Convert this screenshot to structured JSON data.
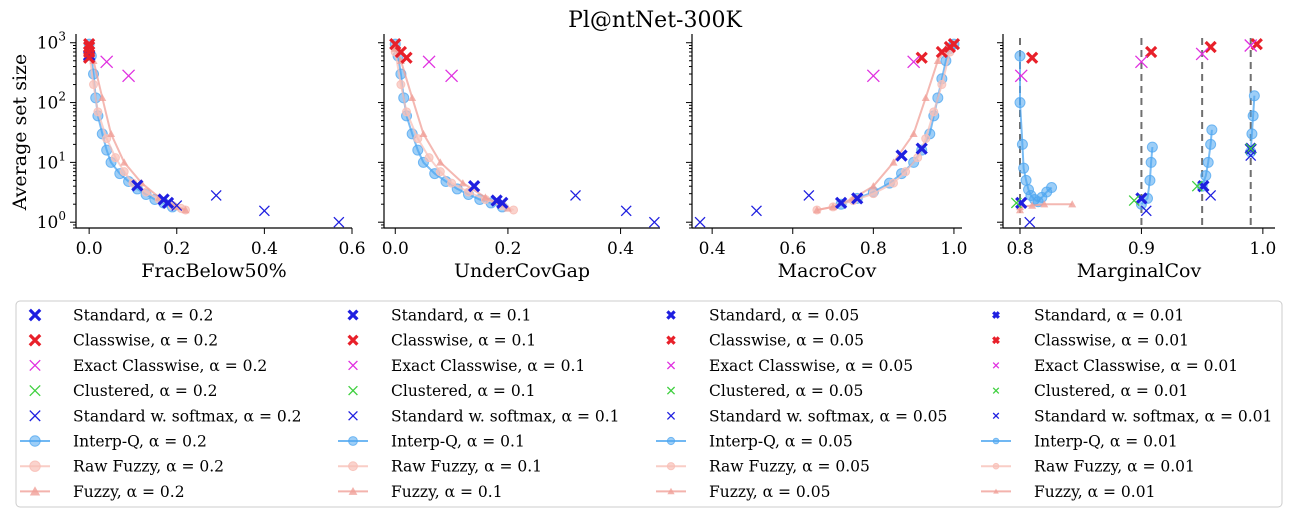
{
  "figure": {
    "title": "Pl@ntNet-300K",
    "ylabel": "Average set size"
  },
  "legend": {
    "columns": [
      [
        "Standard, α = 0.2",
        "Classwise, α = 0.2",
        "Exact Classwise, α = 0.2",
        "Clustered, α = 0.2",
        "Standard w. softmax, α = 0.2",
        "Interp-Q, α = 0.2",
        "Raw Fuzzy, α = 0.2",
        "Fuzzy, α = 0.2"
      ],
      [
        "Standard, α = 0.1",
        "Classwise, α = 0.1",
        "Exact Classwise, α = 0.1",
        "Clustered, α = 0.1",
        "Standard w. softmax, α = 0.1",
        "Interp-Q, α = 0.1",
        "Raw Fuzzy, α = 0.1",
        "Fuzzy, α = 0.1"
      ],
      [
        "Standard, α = 0.05",
        "Classwise, α = 0.05",
        "Exact Classwise, α = 0.05",
        "Clustered, α = 0.05",
        "Standard w. softmax, α = 0.05",
        "Interp-Q, α = 0.05",
        "Raw Fuzzy, α = 0.05",
        "Fuzzy, α = 0.05"
      ],
      [
        "Standard, α = 0.01",
        "Classwise, α = 0.01",
        "Exact Classwise, α = 0.01",
        "Clustered, α = 0.01",
        "Standard w. softmax, α = 0.01",
        "Interp-Q, α = 0.01",
        "Raw Fuzzy, α = 0.01",
        "Fuzzy, α = 0.01"
      ]
    ]
  },
  "colors": {
    "standard": "#1f1fe0",
    "classwise": "#e8202a",
    "exact_classwise": "#e030e0",
    "clustered": "#40d040",
    "softmax": "#1f1fe0",
    "interp": "#4da6f0",
    "raw_fuzzy": "#f8c0b8",
    "fuzzy": "#f0a098",
    "dashed": "#707070"
  },
  "chart_data": [
    {
      "type": "line",
      "xlabel": "FracBelow50%",
      "ylabel": "Average set size",
      "yscale": "log",
      "ylim": [
        0.8,
        1400
      ],
      "xlim": [
        -0.03,
        0.6
      ],
      "xticks": [
        "0.0",
        "0.2",
        "0.4",
        "0.6"
      ],
      "yticks": [
        "10^0",
        "10^1",
        "10^2",
        "10^3"
      ],
      "series": [
        {
          "name": "Interp-Q",
          "x": [
            0.0,
            0.005,
            0.01,
            0.015,
            0.02,
            0.03,
            0.04,
            0.05,
            0.07,
            0.09,
            0.11,
            0.13,
            0.15,
            0.17,
            0.19
          ],
          "y": [
            950,
            600,
            300,
            120,
            60,
            30,
            16,
            10,
            6.5,
            4.8,
            3.6,
            2.9,
            2.4,
            2.1,
            1.8
          ]
        },
        {
          "name": "Raw Fuzzy",
          "x": [
            0.0,
            0.01,
            0.02,
            0.04,
            0.06,
            0.08,
            0.1,
            0.13,
            0.16,
            0.19,
            0.21,
            0.22
          ],
          "y": [
            700,
            200,
            70,
            25,
            12,
            7,
            4.5,
            3.2,
            2.4,
            1.9,
            1.7,
            1.6
          ]
        },
        {
          "name": "Fuzzy",
          "x": [
            0.0,
            0.01,
            0.03,
            0.05,
            0.08,
            0.12,
            0.16,
            0.2,
            0.22
          ],
          "y": [
            800,
            500,
            120,
            30,
            10,
            4.5,
            2.6,
            1.8,
            1.6
          ]
        },
        {
          "name": "Standard",
          "x": [
            0.0,
            0.11,
            0.17,
            0.18,
            0.0
          ],
          "y": [
            620,
            4.1,
            2.4,
            2.1,
            600
          ]
        },
        {
          "name": "Classwise",
          "x": [
            0.0,
            0.0,
            0.0,
            0.0
          ],
          "y": [
            560,
            700,
            850,
            950
          ]
        },
        {
          "name": "Exact Classwise",
          "x": [
            0.04,
            0.09
          ],
          "y": [
            480,
            280
          ]
        },
        {
          "name": "Standard w. softmax",
          "x": [
            0.2,
            0.29,
            0.4,
            0.57
          ],
          "y": [
            1.9,
            2.8,
            1.55,
            1.0
          ]
        }
      ]
    },
    {
      "type": "line",
      "xlabel": "UnderCovGap",
      "ylabel": "Average set size",
      "yscale": "log",
      "ylim": [
        0.8,
        1400
      ],
      "xlim": [
        -0.02,
        0.47
      ],
      "xticks": [
        "0.0",
        "0.2",
        "0.4"
      ],
      "series": [
        {
          "name": "Interp-Q",
          "x": [
            0.0,
            0.005,
            0.01,
            0.015,
            0.02,
            0.03,
            0.04,
            0.05,
            0.07,
            0.09,
            0.11,
            0.13,
            0.15,
            0.17,
            0.19
          ],
          "y": [
            950,
            600,
            300,
            120,
            60,
            30,
            16,
            10,
            6.5,
            4.8,
            3.6,
            2.9,
            2.4,
            2.1,
            1.8
          ]
        },
        {
          "name": "Raw Fuzzy",
          "x": [
            0.0,
            0.01,
            0.02,
            0.04,
            0.06,
            0.08,
            0.1,
            0.13,
            0.16,
            0.19,
            0.21
          ],
          "y": [
            700,
            200,
            70,
            25,
            12,
            7,
            4.5,
            3.2,
            2.4,
            1.9,
            1.6
          ]
        },
        {
          "name": "Fuzzy",
          "x": [
            0.0,
            0.01,
            0.03,
            0.05,
            0.08,
            0.12,
            0.16,
            0.2
          ],
          "y": [
            800,
            500,
            120,
            30,
            10,
            4.5,
            2.6,
            1.7
          ]
        },
        {
          "name": "Standard",
          "x": [
            0.14,
            0.18,
            0.19
          ],
          "y": [
            4.0,
            2.3,
            2.1
          ]
        },
        {
          "name": "Classwise",
          "x": [
            0.0,
            0.01,
            0.02
          ],
          "y": [
            950,
            700,
            560
          ]
        },
        {
          "name": "Exact Classwise",
          "x": [
            0.06,
            0.1
          ],
          "y": [
            480,
            280
          ]
        },
        {
          "name": "Standard w. softmax",
          "x": [
            0.32,
            0.41,
            0.46
          ],
          "y": [
            2.8,
            1.55,
            1.0
          ]
        }
      ]
    },
    {
      "type": "line",
      "xlabel": "MacroCov",
      "ylabel": "Average set size",
      "yscale": "log",
      "ylim": [
        0.8,
        1400
      ],
      "xlim": [
        0.35,
        1.02
      ],
      "xticks": [
        "0.4",
        "0.6",
        "0.8",
        "1.0"
      ],
      "series": [
        {
          "name": "Interp-Q",
          "x": [
            0.72,
            0.76,
            0.8,
            0.84,
            0.87,
            0.9,
            0.92,
            0.94,
            0.95,
            0.96,
            0.97,
            0.98,
            0.99,
            1.0
          ],
          "y": [
            2.0,
            2.5,
            3.2,
            4.5,
            6.5,
            10,
            16,
            30,
            60,
            120,
            250,
            500,
            800,
            950
          ]
        },
        {
          "name": "Raw Fuzzy",
          "x": [
            0.66,
            0.7,
            0.75,
            0.8,
            0.85,
            0.88,
            0.91,
            0.93,
            0.95,
            0.97,
            0.99
          ],
          "y": [
            1.6,
            1.8,
            2.3,
            3.0,
            4.5,
            7,
            12,
            25,
            70,
            200,
            700
          ]
        },
        {
          "name": "Fuzzy",
          "x": [
            0.66,
            0.7,
            0.75,
            0.8,
            0.85,
            0.9,
            0.93,
            0.96,
            0.98
          ],
          "y": [
            1.6,
            1.8,
            2.5,
            4.0,
            10,
            30,
            120,
            500,
            800
          ]
        },
        {
          "name": "Standard",
          "x": [
            0.72,
            0.76,
            0.87,
            0.92
          ],
          "y": [
            2.1,
            2.5,
            13,
            17
          ]
        },
        {
          "name": "Classwise",
          "x": [
            0.92,
            0.97,
            0.99,
            1.0
          ],
          "y": [
            560,
            700,
            850,
            950
          ]
        },
        {
          "name": "Exact Classwise",
          "x": [
            0.8,
            0.9
          ],
          "y": [
            280,
            480
          ]
        },
        {
          "name": "Standard w. softmax",
          "x": [
            0.37,
            0.51,
            0.64
          ],
          "y": [
            1.0,
            1.55,
            2.8
          ]
        }
      ]
    },
    {
      "type": "line",
      "xlabel": "MarginalCov",
      "ylabel": "Average set size",
      "yscale": "log",
      "ylim": [
        0.8,
        1400
      ],
      "xlim": [
        0.786,
        1.01
      ],
      "xticks": [
        "0.8",
        "0.9",
        "1.0"
      ],
      "reference_lines_x": [
        0.8,
        0.9,
        0.95,
        0.99
      ],
      "series": [
        {
          "name": "Interp-Q, α = 0.2",
          "x": [
            0.8,
            0.8,
            0.802,
            0.803,
            0.805,
            0.807,
            0.809,
            0.812,
            0.815,
            0.818,
            0.822,
            0.826
          ],
          "y": [
            600,
            100,
            20,
            8,
            5,
            3.5,
            2.8,
            2.4,
            2.2,
            2.6,
            3.2,
            3.8
          ]
        },
        {
          "name": "Fuzzy, α = 0.2",
          "x": [
            0.8,
            0.8,
            0.81,
            0.82,
            0.843
          ],
          "y": [
            1.6,
            1.8,
            1.9,
            2.0,
            2.0
          ]
        },
        {
          "name": "Interp-Q, α = 0.1",
          "x": [
            0.9,
            0.905,
            0.907,
            0.908,
            0.909
          ],
          "y": [
            2.0,
            2.5,
            5,
            10,
            18
          ]
        },
        {
          "name": "Interp-Q, α = 0.05",
          "x": [
            0.95,
            0.953,
            0.955,
            0.957,
            0.958
          ],
          "y": [
            4.0,
            6,
            10,
            20,
            35
          ]
        },
        {
          "name": "Interp-Q, α = 0.01",
          "x": [
            0.99,
            0.991,
            0.992,
            0.993
          ],
          "y": [
            15,
            30,
            60,
            130
          ]
        },
        {
          "name": "Standard",
          "x": [
            0.801,
            0.9,
            0.951,
            0.99
          ],
          "y": [
            2.1,
            2.5,
            4.0,
            17
          ]
        },
        {
          "name": "Classwise",
          "x": [
            0.81,
            0.908,
            0.957,
            0.995
          ],
          "y": [
            560,
            700,
            850,
            950
          ]
        },
        {
          "name": "Exact Classwise",
          "x": [
            0.801,
            0.9,
            0.95,
            0.99
          ],
          "y": [
            280,
            480,
            650,
            900
          ]
        },
        {
          "name": "Clustered",
          "x": [
            0.797,
            0.894,
            0.946,
            0.99
          ],
          "y": [
            2.1,
            2.3,
            4.0,
            17
          ]
        },
        {
          "name": "Standard w. softmax",
          "x": [
            0.808,
            0.904,
            0.957,
            0.99
          ],
          "y": [
            1.0,
            1.55,
            2.8,
            13
          ]
        }
      ]
    }
  ]
}
